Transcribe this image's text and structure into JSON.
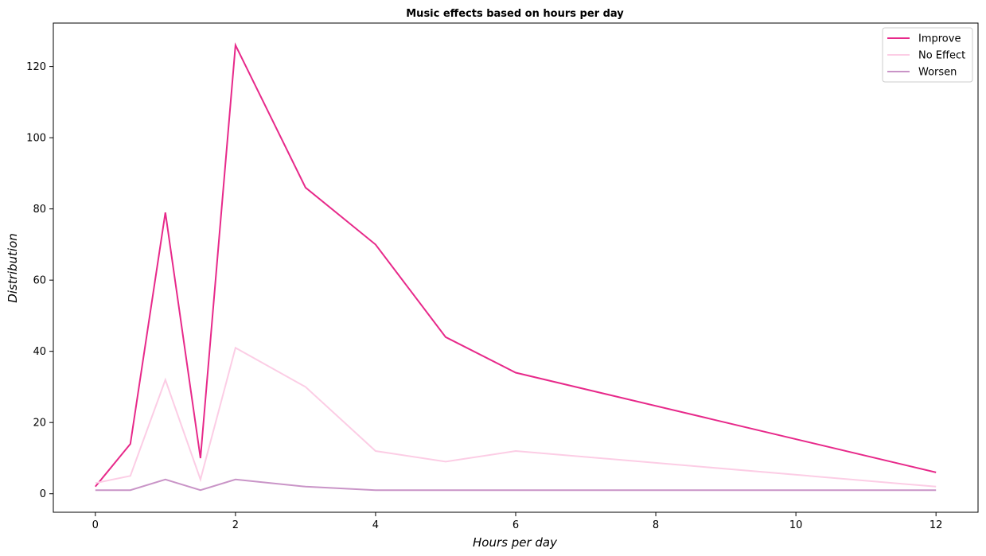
{
  "chart_data": {
    "type": "line",
    "title": "Music effects based on hours per day",
    "xlabel": "Hours per day",
    "ylabel": "Distribution",
    "x": [
      0,
      0.5,
      1,
      1.5,
      2,
      3,
      4,
      5,
      6,
      12
    ],
    "series": [
      {
        "name": "Improve",
        "color": "#e7298a",
        "values": [
          2,
          14,
          79,
          10,
          126,
          86,
          70,
          44,
          34,
          6
        ]
      },
      {
        "name": "No Effect",
        "color": "#fccde5",
        "values": [
          3,
          5,
          32,
          4,
          41,
          30,
          12,
          9,
          12,
          2
        ]
      },
      {
        "name": "Worsen",
        "color": "#c994c7",
        "values": [
          1,
          1,
          4,
          1,
          4,
          2,
          1,
          1,
          1,
          1
        ]
      }
    ],
    "xlim": [
      -0.6,
      12.6
    ],
    "ylim": [
      -5.2,
      132.2
    ],
    "xticks": [
      0,
      2,
      4,
      6,
      8,
      10,
      12
    ],
    "yticks": [
      0,
      20,
      40,
      60,
      80,
      100,
      120
    ],
    "grid": false,
    "legend": "top-right"
  }
}
